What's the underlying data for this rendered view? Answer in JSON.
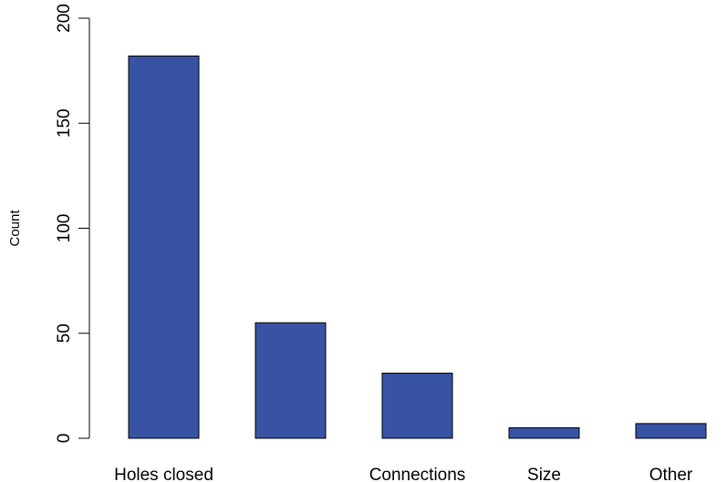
{
  "chart_data": {
    "type": "bar",
    "categories": [
      "Holes closed",
      "",
      "Connections",
      "Size",
      "Other"
    ],
    "values": [
      182,
      55,
      31,
      5,
      7
    ],
    "title": "",
    "xlabel": "",
    "ylabel": "Count",
    "ylim": [
      0,
      200
    ],
    "yticks": [
      0,
      50,
      100,
      150,
      200
    ],
    "bar_color": "#3953a4",
    "grid": false
  }
}
